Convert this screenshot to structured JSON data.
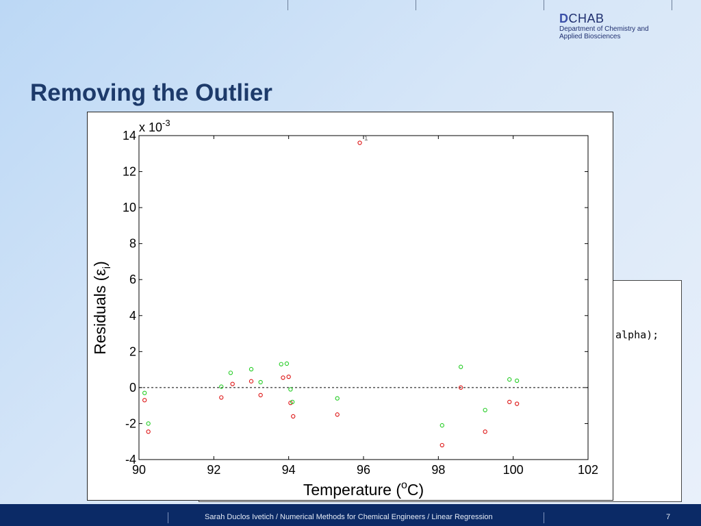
{
  "header": {
    "logo_letter": "D",
    "logo_word": "CHAB",
    "logo_line1": "Department of Chemistry and",
    "logo_line2": "Applied Biosciences"
  },
  "slide": {
    "title": "Removing the Outlier"
  },
  "background_window": {
    "code_fragment": "alpha);"
  },
  "footer": {
    "text": "Sarah Duclos Ivetich / Numerical Methods for Chemical Engineers / Linear Regression",
    "page": "7"
  },
  "chart_data": {
    "type": "scatter",
    "xlabel": "Temperature (",
    "xlabel_sup": "o",
    "xlabel_end": "C)",
    "ylabel": "Residuals (ε",
    "ylabel_sub": "i",
    "ylabel_end": ")",
    "y_exponent_prefix": "x 10",
    "y_exponent": "-3",
    "xlim": [
      90,
      102
    ],
    "ylim": [
      -4,
      14
    ],
    "x_ticks": [
      "90",
      "92",
      "94",
      "96",
      "98",
      "100",
      "102"
    ],
    "y_ticks": [
      "-4",
      "-2",
      "0",
      "2",
      "4",
      "6",
      "8",
      "10",
      "12",
      "14"
    ],
    "zero_line": true,
    "annotation": {
      "text": "1",
      "x": 96.0,
      "y": 13.7
    },
    "series": [
      {
        "color": "#dd1111",
        "points": [
          [
            90.15,
            -0.7
          ],
          [
            90.25,
            -2.45
          ],
          [
            92.2,
            -0.55
          ],
          [
            92.5,
            0.2
          ],
          [
            93.0,
            0.35
          ],
          [
            93.25,
            -0.42
          ],
          [
            93.85,
            0.55
          ],
          [
            94.0,
            0.6
          ],
          [
            94.05,
            -0.85
          ],
          [
            94.12,
            -1.6
          ],
          [
            95.3,
            -1.5
          ],
          [
            95.9,
            13.6
          ],
          [
            98.1,
            -3.2
          ],
          [
            98.6,
            0.0
          ],
          [
            99.25,
            -2.45
          ],
          [
            99.9,
            -0.8
          ],
          [
            100.1,
            -0.9
          ]
        ]
      },
      {
        "color": "#22cc22",
        "points": [
          [
            90.15,
            -0.3
          ],
          [
            90.25,
            -2.0
          ],
          [
            92.2,
            0.05
          ],
          [
            92.45,
            0.82
          ],
          [
            93.0,
            1.02
          ],
          [
            93.25,
            0.3
          ],
          [
            93.8,
            1.3
          ],
          [
            93.95,
            1.33
          ],
          [
            94.05,
            -0.1
          ],
          [
            94.1,
            -0.8
          ],
          [
            95.3,
            -0.6
          ],
          [
            98.1,
            -2.1
          ],
          [
            98.6,
            1.15
          ],
          [
            99.25,
            -1.25
          ],
          [
            99.9,
            0.45
          ],
          [
            100.1,
            0.38
          ]
        ]
      }
    ]
  }
}
